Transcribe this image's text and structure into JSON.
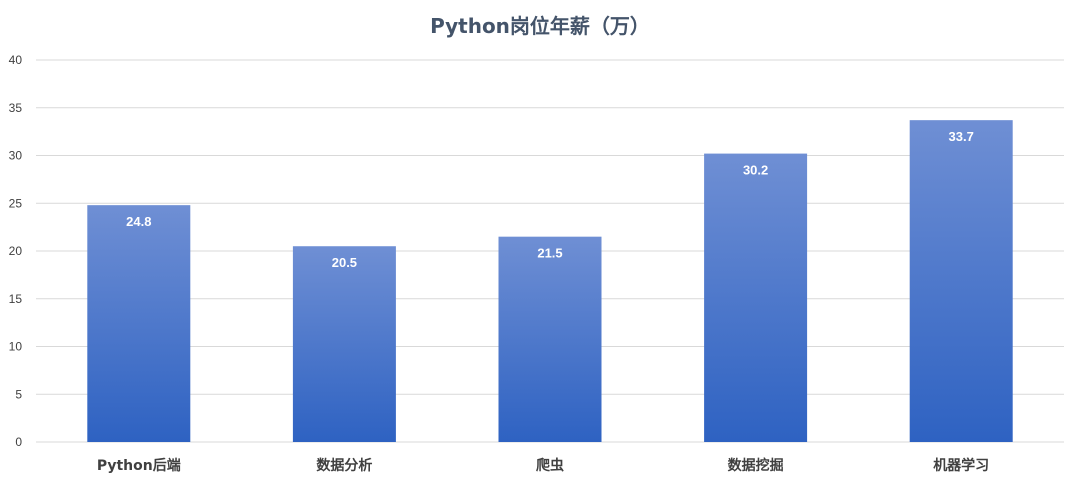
{
  "chart_data": {
    "type": "bar",
    "title": "Python岗位年薪（万）",
    "xlabel": "",
    "ylabel": "",
    "categories": [
      "Python后端",
      "数据分析",
      "爬虫",
      "数据挖掘",
      "机器学习"
    ],
    "values": [
      24.8,
      20.5,
      21.5,
      30.2,
      33.7
    ],
    "data_labels": [
      "24.8",
      "20.5",
      "21.5",
      "30.2",
      "33.7"
    ],
    "ylim": [
      0,
      40
    ],
    "yticks": [
      "0",
      "5",
      "10",
      "15",
      "20",
      "25",
      "30",
      "35",
      "40"
    ],
    "grid": true,
    "legend": "none",
    "colors": {
      "bar_top": "#6f8fd4",
      "bar_bottom": "#2e62c2",
      "grid": "#d9d9d9",
      "title": "#44546a",
      "text": "#404040"
    }
  }
}
